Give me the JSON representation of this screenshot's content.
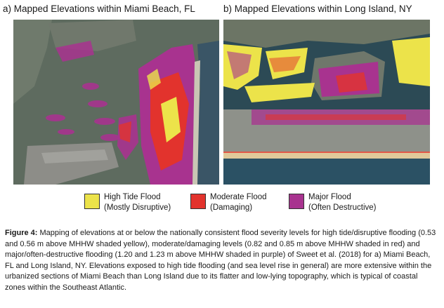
{
  "panels": {
    "a": {
      "title": "a) Mapped Elevations within Miami Beach, FL"
    },
    "b": {
      "title": "b) Mapped Elevations within Long Island, NY"
    }
  },
  "legend": {
    "high": {
      "line1": "High Tide Flood",
      "line2": "(Mostly Disruptive)",
      "color": "#ece34a"
    },
    "moderate": {
      "line1": "Moderate Flood",
      "line2": "(Damaging)",
      "color": "#e2332d"
    },
    "major": {
      "line1": "Major Flood",
      "line2": "(Often Destructive)",
      "color": "#a8338f"
    }
  },
  "caption": {
    "label": "Figure 4:",
    "text": " Mapping of elevations at or below the nationally consistent flood severity levels for high tide/disruptive flooding (0.53 and 0.56 m above MHHW shaded yellow), moderate/damaging levels (0.82 and 0.85 m above MHHW shaded in red) and major/often-destructive flooding (1.20 and 1.23 m above MHHW shaded in purple) of Sweet et al. (2018) for a) Miami Beach, FL and Long Island, NY.  Elevations exposed to high tide flooding (and sea level rise in general) are more extensive within the urbanized sections of Miami Beach than Long Island due to its flatter and low-lying topography, which is typical of coastal zones within the Southeast Atlantic."
  },
  "colors": {
    "water_a": "#5e6b5f",
    "water_b": "#2c4a55",
    "land": "#8a8f86"
  }
}
